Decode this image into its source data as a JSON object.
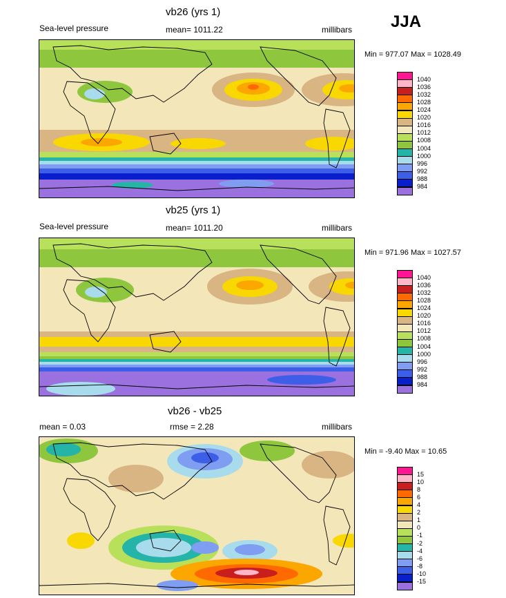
{
  "season": "JJA",
  "colors": {
    "abs": [
      "#9b71e0",
      "#0a1fcc",
      "#3d5fe8",
      "#7f9ef2",
      "#a8dcec",
      "#24b4a8",
      "#8ec63e",
      "#b8e05a",
      "#f3e6b8",
      "#d9b583",
      "#f8d800",
      "#fca700",
      "#ff6a00",
      "#c81e1e",
      "#ffb6c8",
      "#ff1493"
    ],
    "diff": [
      "#9b71e0",
      "#0a1fcc",
      "#3d5fe8",
      "#7f9ef2",
      "#a8dcec",
      "#24b4a8",
      "#8ec63e",
      "#b8e05a",
      "#f3e6b8",
      "#d9b583",
      "#f8d800",
      "#fca700",
      "#ff6a00",
      "#c81e1e",
      "#ffb6c8",
      "#ff1493"
    ]
  },
  "panels": [
    {
      "title": "vb26 (yrs 1)",
      "left_label": "Sea-level pressure",
      "center_label": "mean= 1011.22",
      "units": "millibars",
      "minmax": "Min = 977.07 Max = 1028.49",
      "levels": [
        "1040",
        "1036",
        "1032",
        "1028",
        "1024",
        "1020",
        "1016",
        "1012",
        "1008",
        "1004",
        "1000",
        "996",
        "992",
        "988",
        "984"
      ]
    },
    {
      "title": "vb25 (yrs 1)",
      "left_label": "Sea-level pressure",
      "center_label": "mean= 1011.20",
      "units": "millibars",
      "minmax": "Min = 971.96 Max = 1027.57",
      "levels": [
        "1040",
        "1036",
        "1032",
        "1028",
        "1024",
        "1020",
        "1016",
        "1012",
        "1008",
        "1004",
        "1000",
        "996",
        "992",
        "988",
        "984"
      ]
    },
    {
      "title": "vb26 - vb25",
      "left_label": "mean =   0.03",
      "center_label": "rmse =   2.28",
      "units": "millibars",
      "minmax": "Min =  -9.40 Max =  10.65",
      "levels": [
        "15",
        "10",
        "8",
        "6",
        "4",
        "2",
        "1",
        "0",
        "-1",
        "-2",
        "-4",
        "-6",
        "-8",
        "-10",
        "-15"
      ]
    }
  ]
}
